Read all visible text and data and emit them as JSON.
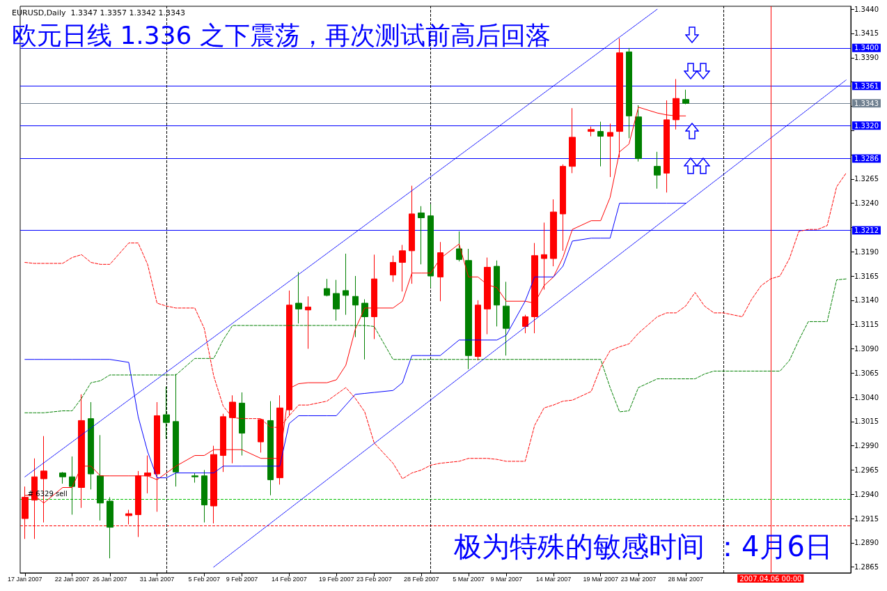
{
  "chart_data": {
    "type": "candlestick",
    "title": "EURUSD,Daily  1.3347 1.3357 1.3342 1.3343",
    "subtitle": "欧元日线 1.336 之下震荡，再次测试前高后回落",
    "annotations": [
      "极为特殊的敏感时间 ：4月6日",
      {
        "text": "# 6329 sell",
        "x": "2007-01-17",
        "y": 1.2935
      }
    ],
    "marker": "none",
    "x": [
      "2007-01-17",
      "2007-01-18",
      "2007-01-19",
      "2007-01-21",
      "2007-01-22",
      "2007-01-23",
      "2007-01-24",
      "2007-01-25",
      "2007-01-26",
      "2007-01-28",
      "2007-01-29",
      "2007-01-30",
      "2007-01-31",
      "2007-02-01",
      "2007-02-02",
      "2007-02-04",
      "2007-02-05",
      "2007-02-06",
      "2007-02-07",
      "2007-02-08",
      "2007-02-09",
      "2007-02-11",
      "2007-02-12",
      "2007-02-13",
      "2007-02-14",
      "2007-02-15",
      "2007-02-16",
      "2007-02-18",
      "2007-02-19",
      "2007-02-20",
      "2007-02-21",
      "2007-02-22",
      "2007-02-23",
      "2007-02-25",
      "2007-02-26",
      "2007-02-27",
      "2007-02-28",
      "2007-03-01",
      "2007-03-02",
      "2007-03-04",
      "2007-03-05",
      "2007-03-06",
      "2007-03-07",
      "2007-03-08",
      "2007-03-09",
      "2007-03-11",
      "2007-03-12",
      "2007-03-13",
      "2007-03-14",
      "2007-03-15",
      "2007-03-16",
      "2007-03-18",
      "2007-03-19",
      "2007-03-20",
      "2007-03-21",
      "2007-03-22",
      "2007-03-23",
      "2007-03-25",
      "2007-03-26",
      "2007-03-27",
      "2007-03-28"
    ],
    "xlim": [
      "2007-01-16T12:00",
      "2007-04-14T12:00"
    ],
    "xticks": [
      {
        "value": "2007-01-17",
        "label": "17 Jan 2007"
      },
      {
        "value": "2007-01-22",
        "label": "22 Jan 2007"
      },
      {
        "value": "2007-01-26",
        "label": "26 Jan 2007"
      },
      {
        "value": "2007-01-31",
        "label": "31 Jan 2007"
      },
      {
        "value": "2007-02-05",
        "label": "5 Feb 2007"
      },
      {
        "value": "2007-02-09",
        "label": "9 Feb 2007"
      },
      {
        "value": "2007-02-14",
        "label": "14 Feb 2007"
      },
      {
        "value": "2007-02-19",
        "label": "19 Feb 2007"
      },
      {
        "value": "2007-02-23",
        "label": "23 Feb 2007"
      },
      {
        "value": "2007-02-28",
        "label": "28 Feb 2007"
      },
      {
        "value": "2007-03-05",
        "label": "5 Mar 2007"
      },
      {
        "value": "2007-03-09",
        "label": "9 Mar 2007"
      },
      {
        "value": "2007-03-14",
        "label": "14 Mar 2007"
      },
      {
        "value": "2007-03-19",
        "label": "19 Mar 2007"
      },
      {
        "value": "2007-03-23",
        "label": "23 Mar 2007"
      },
      {
        "value": "2007-03-28",
        "label": "28 Mar 2007"
      }
    ],
    "ylim": [
      1.2859,
      1.3443
    ],
    "yticks": [
      1.2865,
      {
        "value": 1.289,
        "label": "1.2890"
      },
      1.2915,
      {
        "value": 1.294,
        "label": "1.2940"
      },
      1.2965,
      {
        "value": 1.299,
        "label": "1.2990"
      },
      1.3015,
      {
        "value": 1.304,
        "label": "1.3040"
      },
      1.3065,
      {
        "value": 1.309,
        "label": "1.3090"
      },
      1.3115,
      {
        "value": 1.314,
        "label": "1.3140"
      },
      1.3165,
      {
        "value": 1.319,
        "label": "1.3190"
      },
      {
        "value": 1.3215,
        "label": null
      },
      {
        "value": 1.324,
        "label": "1.3240"
      },
      1.3265,
      {
        "value": 1.329,
        "label": null
      },
      {
        "value": 1.3315,
        "label": null
      },
      {
        "value": 1.334,
        "label": null
      },
      {
        "value": 1.3365,
        "label": null
      },
      {
        "value": 1.339,
        "label": "1.3390"
      },
      1.3415,
      {
        "value": 1.344,
        "label": "1.3440"
      }
    ],
    "series": [
      {
        "ohlc": [
          [
            1.2915,
            1.2948,
            1.2894,
            1.2937
          ],
          [
            1.2934,
            1.2977,
            1.2894,
            1.2958
          ],
          [
            1.2956,
            1.3,
            1.2911,
            1.2964
          ],
          [
            1.2962,
            1.2963,
            1.2951,
            1.2958
          ],
          [
            1.2958,
            1.2979,
            1.2919,
            1.2948
          ],
          [
            1.2947,
            1.3043,
            1.2926,
            1.3016
          ],
          [
            1.3018,
            1.3035,
            1.2945,
            1.2961
          ],
          [
            1.2959,
            1.3001,
            1.2913,
            1.2931
          ],
          [
            1.2933,
            1.2937,
            1.2874,
            1.2906
          ],
          [
            1.2918,
            1.2924,
            1.2909,
            1.292
          ],
          [
            1.2919,
            1.2964,
            1.2896,
            1.2959
          ],
          [
            1.2959,
            1.298,
            1.2941,
            1.2962
          ],
          [
            1.2961,
            1.3035,
            1.2922,
            1.3021
          ],
          [
            1.3022,
            1.3051,
            1.2997,
            1.3014
          ],
          [
            1.3015,
            1.3064,
            1.2948,
            1.2963
          ],
          [
            1.2959,
            1.2962,
            1.2952,
            1.2958
          ],
          [
            1.2959,
            1.2965,
            1.2911,
            1.2929
          ],
          [
            1.2928,
            1.299,
            1.291,
            1.2981
          ],
          [
            1.298,
            1.3023,
            1.2963,
            1.302
          ],
          [
            1.3019,
            1.3042,
            1.2972,
            1.3035
          ],
          [
            1.3034,
            1.3045,
            1.298,
            1.3003
          ],
          [
            1.2994,
            1.3018,
            1.2983,
            1.3017
          ],
          [
            1.3016,
            1.3036,
            1.2939,
            1.2955
          ],
          [
            1.2957,
            1.3042,
            1.295,
            1.3029
          ],
          [
            1.3027,
            1.315,
            1.3021,
            1.3135
          ],
          [
            1.3137,
            1.3169,
            1.3116,
            1.3131
          ],
          [
            1.313,
            1.3144,
            1.309,
            1.3133
          ],
          [
            1.3152,
            1.3162,
            1.3144,
            1.3145
          ],
          [
            1.3147,
            1.3161,
            1.3119,
            1.3131
          ],
          [
            1.315,
            1.3188,
            1.3125,
            1.3145
          ],
          [
            1.3144,
            1.3165,
            1.3102,
            1.3135
          ],
          [
            1.3137,
            1.3141,
            1.3079,
            1.3123
          ],
          [
            1.3123,
            1.3187,
            1.31,
            1.3162
          ],
          [
            1.3166,
            1.3186,
            1.3159,
            1.3179
          ],
          [
            1.3179,
            1.3197,
            1.3149,
            1.3191
          ],
          [
            1.3191,
            1.3258,
            1.3157,
            1.3229
          ],
          [
            1.323,
            1.3237,
            1.3177,
            1.3225
          ],
          [
            1.3227,
            1.3239,
            1.3153,
            1.3165
          ],
          [
            1.3164,
            1.32,
            1.3139,
            1.3189
          ],
          [
            1.3193,
            1.3211,
            1.318,
            1.3182
          ],
          [
            1.3181,
            1.3193,
            1.3069,
            1.3083
          ],
          [
            1.3082,
            1.314,
            1.3078,
            1.3135
          ],
          [
            1.3131,
            1.3184,
            1.3105,
            1.3174
          ],
          [
            1.3175,
            1.3181,
            1.3113,
            1.3135
          ],
          [
            1.3134,
            1.3159,
            1.3083,
            1.3111
          ],
          [
            1.3113,
            1.3125,
            1.3106,
            1.3123
          ],
          [
            1.3123,
            1.3199,
            1.3106,
            1.3186
          ],
          [
            1.3183,
            1.322,
            1.3151,
            1.3187
          ],
          [
            1.3183,
            1.3244,
            1.3175,
            1.3231
          ],
          [
            1.3229,
            1.328,
            1.3191,
            1.3278
          ],
          [
            1.3278,
            1.3338,
            1.3271,
            1.3308
          ],
          [
            1.3314,
            1.3319,
            1.3309,
            1.3316
          ],
          [
            1.3314,
            1.3324,
            1.3278,
            1.3309
          ],
          [
            1.3309,
            1.3322,
            1.3267,
            1.3313
          ],
          [
            1.3314,
            1.341,
            1.3287,
            1.3395
          ],
          [
            1.3396,
            1.34,
            1.3307,
            1.333
          ],
          [
            1.3329,
            1.3341,
            1.3283,
            1.3286
          ],
          [
            1.3278,
            1.3293,
            1.3255,
            1.3269
          ],
          [
            1.3271,
            1.3346,
            1.3251,
            1.3326
          ],
          [
            1.3326,
            1.3368,
            1.3316,
            1.3348
          ],
          [
            1.3347,
            1.3357,
            1.3342,
            1.3343
          ]
        ],
        "colors": [
          "#ff0000",
          "#ff0000",
          "#ff0000",
          "#008000",
          "#008000",
          "#ff0000",
          "#008000",
          "#008000",
          "#008000",
          "#ff0000",
          "#ff0000",
          "#ff0000",
          "#ff0000",
          "#008000",
          "#008000",
          "#008000",
          "#008000",
          "#ff0000",
          "#ff0000",
          "#ff0000",
          "#008000",
          "#ff0000",
          "#008000",
          "#ff0000",
          "#ff0000",
          "#008000",
          "#ff0000",
          "#008000",
          "#008000",
          "#008000",
          "#008000",
          "#008000",
          "#ff0000",
          "#ff0000",
          "#ff0000",
          "#ff0000",
          "#008000",
          "#008000",
          "#ff0000",
          "#008000",
          "#008000",
          "#ff0000",
          "#ff0000",
          "#008000",
          "#008000",
          "#ff0000",
          "#ff0000",
          "#ff0000",
          "#ff0000",
          "#ff0000",
          "#ff0000",
          "#ff0000",
          "#008000",
          "#ff0000",
          "#ff0000",
          "#008000",
          "#008000",
          "#008000",
          "#ff0000",
          "#ff0000",
          "#008000"
        ]
      },
      {
        "type": "line",
        "color": "#ff0000",
        "line_style": "solid",
        "values": [
          1.2939,
          1.2939,
          1.2931,
          1.2947,
          1.2947,
          1.2969,
          1.2969,
          1.2959,
          1.2959,
          1.2959,
          1.2959,
          1.2959,
          1.2955,
          1.2962,
          1.2969,
          1.298,
          1.298,
          1.2986,
          1.2986,
          1.2986,
          1.2986,
          1.2977,
          1.2977,
          1.2977,
          1.3049,
          1.3054,
          1.3055,
          1.3055,
          1.3058,
          1.3073,
          1.311,
          1.3132,
          1.3132,
          1.3132,
          1.3139,
          1.3168,
          1.3168,
          1.3168,
          1.3183,
          1.3198,
          1.3164,
          1.3164,
          1.3156,
          1.3153,
          1.3139,
          1.3139,
          1.3137,
          1.3155,
          1.3164,
          1.3184,
          1.3213,
          1.3222,
          1.3222,
          1.3246,
          1.3293,
          1.3301,
          1.3339,
          1.3333,
          1.3331,
          1.333,
          1.333
        ]
      },
      {
        "type": "line",
        "color": "#0000ff",
        "line_style": "solid",
        "values": [
          1.3079,
          1.3079,
          1.3079,
          1.3079,
          1.3079,
          1.3079,
          1.3079,
          1.3079,
          1.3079,
          1.3076,
          1.302,
          1.2984,
          1.2957,
          1.2957,
          1.2962,
          1.2962,
          1.2962,
          1.2962,
          1.2969,
          1.2969,
          1.2969,
          1.2969,
          1.2969,
          1.2969,
          1.3013,
          1.3021,
          1.3021,
          1.3021,
          1.3021,
          1.3032,
          1.3043,
          1.3044,
          1.3045,
          1.3047,
          1.3055,
          1.3083,
          1.3083,
          1.3083,
          1.3083,
          1.3099,
          1.3099,
          1.3099,
          1.3099,
          1.3099,
          1.3104,
          1.3139,
          1.3164,
          1.3164,
          1.3164,
          1.3175,
          1.3201,
          1.3204,
          1.3204,
          1.3204,
          1.324,
          1.324,
          1.324,
          1.324,
          1.324,
          1.324,
          1.324
        ]
      },
      {
        "type": "line",
        "color": "#ff0000",
        "line_style": "dashed",
        "x": [
          "2007-01-17",
          "2007-01-18",
          "2007-01-19",
          "2007-01-21",
          "2007-01-22",
          "2007-01-23",
          "2007-01-24",
          "2007-01-25",
          "2007-01-26",
          "2007-01-28",
          "2007-01-29",
          "2007-01-30",
          "2007-01-31",
          "2007-02-01",
          "2007-02-02",
          "2007-02-04",
          "2007-02-05",
          "2007-02-06",
          "2007-02-07",
          "2007-02-08",
          "2007-02-09",
          "2007-02-11",
          "2007-02-12",
          "2007-02-13",
          "2007-02-14",
          "2007-02-15",
          "2007-02-16",
          "2007-02-18",
          "2007-02-19",
          "2007-02-20",
          "2007-02-21",
          "2007-02-22",
          "2007-02-23",
          "2007-02-25",
          "2007-02-26",
          "2007-02-27",
          "2007-02-28",
          "2007-03-01",
          "2007-03-02",
          "2007-03-04",
          "2007-03-05",
          "2007-03-06",
          "2007-03-07",
          "2007-03-08",
          "2007-03-09",
          "2007-03-11",
          "2007-03-12",
          "2007-03-13",
          "2007-03-14",
          "2007-03-15",
          "2007-03-16",
          "2007-03-18",
          "2007-03-19",
          "2007-03-20",
          "2007-03-21",
          "2007-03-22",
          "2007-03-23",
          "2007-03-25",
          "2007-03-26",
          "2007-03-27",
          "2007-03-28",
          "2007-03-29",
          "2007-03-30",
          "2007-03-31",
          "2007-04-01",
          "2007-04-02",
          "2007-04-03",
          "2007-04-04",
          "2007-04-05",
          "2007-04-06",
          "2007-04-07",
          "2007-04-08",
          "2007-04-09",
          "2007-04-10",
          "2007-04-11",
          "2007-04-12",
          "2007-04-13",
          "2007-04-14"
        ],
        "values": [
          1.3179,
          1.3178,
          1.3178,
          1.3178,
          1.3184,
          1.3187,
          1.3179,
          1.3177,
          1.3177,
          1.3199,
          1.3199,
          1.3177,
          1.3137,
          1.3134,
          1.3132,
          1.3132,
          1.3111,
          1.3062,
          1.3031,
          1.3019,
          1.3018,
          1.3018,
          1.3009,
          1.3009,
          1.3021,
          1.3032,
          1.3032,
          1.3036,
          1.3043,
          1.305,
          1.3039,
          1.3025,
          1.2993,
          1.2972,
          1.2956,
          1.2962,
          1.2965,
          1.297,
          1.2972,
          1.2974,
          1.2977,
          1.2977,
          1.2977,
          1.2976,
          1.2974,
          1.2974,
          1.3011,
          1.3029,
          1.3032,
          1.3036,
          1.3037,
          1.3046,
          1.3071,
          1.3088,
          1.3092,
          1.3095,
          1.3106,
          1.3123,
          1.3127,
          1.3127,
          1.3134,
          1.3148,
          1.3134,
          1.3127,
          1.3127,
          1.3125,
          1.3123,
          1.3141,
          1.3155,
          1.3162,
          1.3165,
          1.3183,
          1.3211,
          1.3213,
          1.3213,
          1.3217,
          1.3257,
          1.3271
        ]
      },
      {
        "type": "line",
        "color": "#008000",
        "line_style": "dashed",
        "x": [
          "2007-01-17",
          "2007-01-18",
          "2007-01-19",
          "2007-01-21",
          "2007-01-22",
          "2007-01-23",
          "2007-01-24",
          "2007-01-25",
          "2007-01-26",
          "2007-01-28",
          "2007-01-29",
          "2007-01-30",
          "2007-01-31",
          "2007-02-01",
          "2007-02-02",
          "2007-02-04",
          "2007-02-05",
          "2007-02-06",
          "2007-02-07",
          "2007-02-08",
          "2007-02-09",
          "2007-02-11",
          "2007-02-12",
          "2007-02-13",
          "2007-02-14",
          "2007-02-15",
          "2007-02-16",
          "2007-02-18",
          "2007-02-19",
          "2007-02-20",
          "2007-02-21",
          "2007-02-22",
          "2007-02-23",
          "2007-02-25",
          "2007-02-26",
          "2007-02-27",
          "2007-02-28",
          "2007-03-01",
          "2007-03-02",
          "2007-03-04",
          "2007-03-05",
          "2007-03-06",
          "2007-03-07",
          "2007-03-08",
          "2007-03-09",
          "2007-03-11",
          "2007-03-12",
          "2007-03-13",
          "2007-03-14",
          "2007-03-15",
          "2007-03-16",
          "2007-03-18",
          "2007-03-19",
          "2007-03-20",
          "2007-03-21",
          "2007-03-22",
          "2007-03-23",
          "2007-03-25",
          "2007-03-26",
          "2007-03-27",
          "2007-03-28",
          "2007-03-29",
          "2007-03-30",
          "2007-03-31",
          "2007-04-01",
          "2007-04-02",
          "2007-04-03",
          "2007-04-04",
          "2007-04-05",
          "2007-04-06",
          "2007-04-07",
          "2007-04-08",
          "2007-04-09",
          "2007-04-10",
          "2007-04-11",
          "2007-04-12",
          "2007-04-13",
          "2007-04-14"
        ],
        "values": [
          1.3024,
          1.3024,
          1.3024,
          1.3026,
          1.3026,
          1.3039,
          1.3055,
          1.3057,
          1.3063,
          1.3063,
          1.3063,
          1.3063,
          1.3063,
          1.3063,
          1.3063,
          1.308,
          1.308,
          1.308,
          1.3099,
          1.3114,
          1.3114,
          1.3114,
          1.3114,
          1.3114,
          1.3114,
          1.3114,
          1.3114,
          1.3114,
          1.3114,
          1.3114,
          1.3114,
          1.3114,
          1.3113,
          1.3079,
          1.3079,
          1.3079,
          1.3079,
          1.3079,
          1.3079,
          1.3079,
          1.3079,
          1.3079,
          1.3079,
          1.3079,
          1.3079,
          1.3079,
          1.3079,
          1.3079,
          1.3079,
          1.3079,
          1.3079,
          1.3079,
          1.3079,
          1.305,
          1.3025,
          1.3026,
          1.305,
          1.3059,
          1.3059,
          1.3059,
          1.3059,
          1.3059,
          1.3064,
          1.3067,
          1.3067,
          1.3067,
          1.3067,
          1.3067,
          1.3067,
          1.3067,
          1.3067,
          1.3078,
          1.3099,
          1.3118,
          1.3118,
          1.3118,
          1.3161,
          1.3162
        ]
      },
      {
        "type": "line",
        "color": "#0000ff",
        "line_style": "dotted",
        "x": [
          "2007-01-17",
          "2007-03-25"
        ],
        "values": [
          1.2958,
          1.344
        ]
      },
      {
        "type": "line",
        "color": "#0000ff",
        "line_style": "dotted",
        "x": [
          "2007-02-06",
          "2007-04-14"
        ],
        "values": [
          1.2865,
          1.3367
        ]
      }
    ],
    "ref_lines": [
      {
        "axis": "y",
        "value": 1.34,
        "label": "1.3400",
        "color": "#0000ff",
        "line_style": "solid"
      },
      {
        "axis": "y",
        "value": 1.3361,
        "label": "1.3361",
        "color": "#0000ff",
        "line_style": "solid"
      },
      {
        "axis": "y",
        "value": 1.3343,
        "label": "1.3343",
        "color": "#708090",
        "line_style": "solid"
      },
      {
        "axis": "y",
        "value": 1.332,
        "label": "1.3320",
        "color": "#0000ff",
        "line_style": "solid"
      },
      {
        "axis": "y",
        "value": 1.3286,
        "label": "1.3286",
        "color": "#0000ff",
        "line_style": "solid"
      },
      {
        "axis": "y",
        "value": 1.3212,
        "label": "1.3212",
        "color": "#0000ff",
        "line_style": "solid"
      },
      {
        "axis": "y",
        "value": 1.2935,
        "label": null,
        "color": "#00c000",
        "line_style": "dashed"
      },
      {
        "axis": "y",
        "value": 1.2908,
        "label": null,
        "color": "#ff0000",
        "line_style": "dashed"
      },
      {
        "axis": "x",
        "value": "2007-02-01",
        "label": null,
        "color": "#000000",
        "line_style": "dashed"
      },
      {
        "axis": "x",
        "value": "2007-03-01",
        "label": null,
        "color": "#000000",
        "line_style": "dashed"
      },
      {
        "axis": "x",
        "value": "2007-04-01",
        "label": null,
        "color": "#000000",
        "line_style": "dashed"
      },
      {
        "axis": "x",
        "value": "2007-04-06",
        "label": "2007.04.06 00:00",
        "color": "#ff0000",
        "line_style": "solid"
      }
    ]
  }
}
